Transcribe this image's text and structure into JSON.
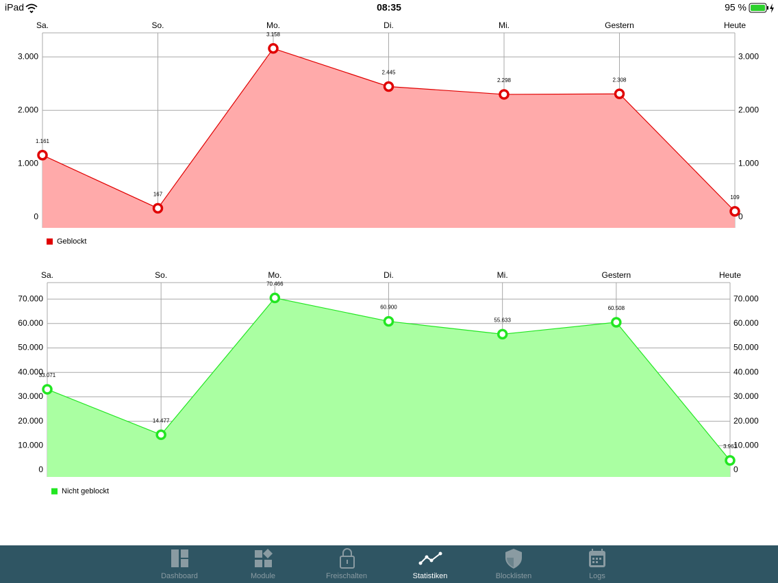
{
  "status_bar": {
    "device": "iPad",
    "time": "08:35",
    "battery": "95 %"
  },
  "chart_data": [
    {
      "type": "area",
      "categories": [
        "Sa.",
        "So.",
        "Mo.",
        "Di.",
        "Mi.",
        "Gestern",
        "Heute"
      ],
      "series": [
        {
          "name": "Geblockt",
          "color": "#e00000",
          "fill_color": "#ffaaaa",
          "values": [
            1161,
            167,
            3158,
            2445,
            2298,
            2308,
            109
          ],
          "value_labels": [
            "1.161",
            "167",
            "3.158",
            "2.445",
            "2.298",
            "2.308",
            "109"
          ]
        }
      ],
      "ylim": [
        -200,
        3450
      ],
      "yticks": [
        0,
        {
          "value": 1000,
          "label": "1.000"
        },
        {
          "value": 2000,
          "label": "2.000"
        },
        {
          "value": 3000,
          "label": "3.000"
        }
      ],
      "grid": true,
      "legend": "bottom-left"
    },
    {
      "type": "area",
      "categories": [
        "Sa.",
        "So.",
        "Mo.",
        "Di.",
        "Mi.",
        "Gestern",
        "Heute"
      ],
      "series": [
        {
          "name": "Nicht geblockt",
          "color": "#22e622",
          "fill_color": "#aaffa2",
          "values": [
            33071,
            14477,
            70466,
            60900,
            55633,
            60508,
            3963
          ],
          "value_labels": [
            "33.071",
            "14.477",
            "70.466",
            "60.900",
            "55.633",
            "60.508",
            "3.963"
          ]
        }
      ],
      "ylim": [
        -2800,
        76750
      ],
      "yticks": [
        0,
        {
          "value": 10000,
          "label": "10.000"
        },
        {
          "value": 20000,
          "label": "20.000"
        },
        {
          "value": 30000,
          "label": "30.000"
        },
        {
          "value": 40000,
          "label": "40.000"
        },
        {
          "value": 50000,
          "label": "50.000"
        },
        {
          "value": 60000,
          "label": "60.000"
        },
        {
          "value": 70000,
          "label": "70.000"
        }
      ],
      "grid": true,
      "legend": "bottom-left"
    }
  ],
  "tab_bar": {
    "items": [
      "Dashboard",
      "Module",
      "Freischalten",
      "Statistiken",
      "Blocklisten",
      "Logs"
    ],
    "active": 3
  }
}
